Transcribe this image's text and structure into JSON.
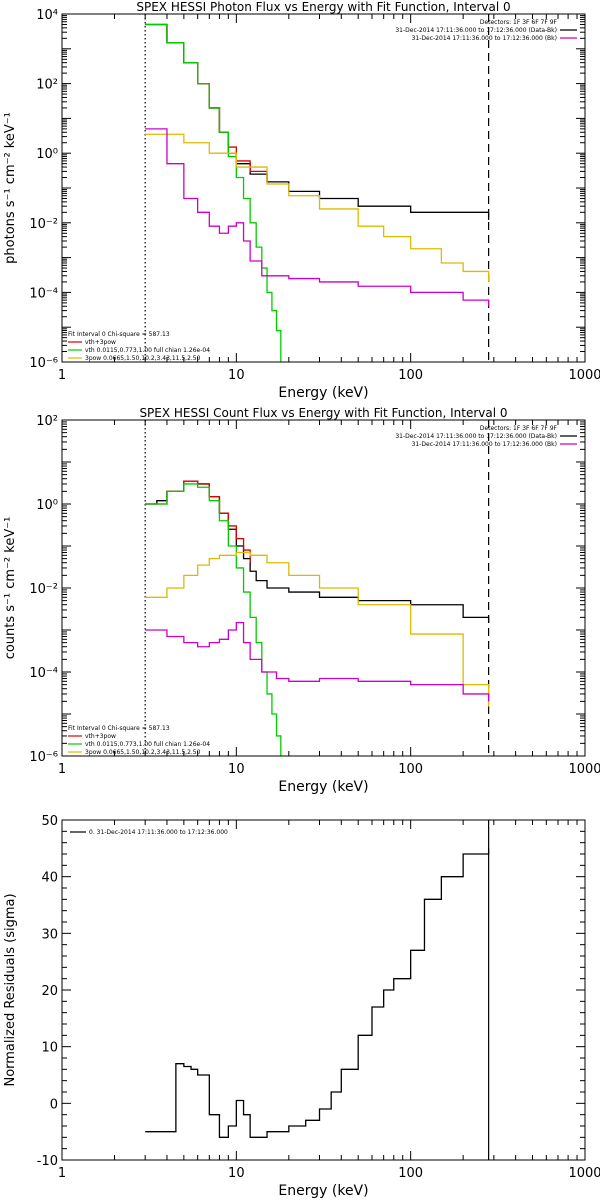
{
  "chart_data": [
    {
      "type": "line",
      "title": "SPEX HESSI Photon Flux vs Energy with Fit Function, Interval 0",
      "xlabel": "Energy (keV)",
      "ylabel": "photons s⁻¹ cm⁻² keV⁻¹",
      "xscale": "log",
      "yscale": "log",
      "xlim": [
        1,
        1000
      ],
      "ylim": [
        1e-06,
        10000
      ],
      "x_ticks": [
        1,
        10,
        100,
        1000
      ],
      "x_tick_labels": [
        "1",
        "10",
        "100",
        "1000"
      ],
      "y_ticks": [
        1e-06,
        0.0001,
        0.01,
        1,
        100,
        10000
      ],
      "y_tick_labels": [
        "10⁻⁶",
        "10⁻⁴",
        "10⁻²",
        "10⁰",
        "10²",
        "10⁴"
      ],
      "grid": false,
      "legend_top": [
        "Detectors: 1F 3F 6F 7F 9F",
        "31-Dec-2014 17:11:36.000 to 17:12:36.000 (Data-Bk)",
        "31-Dec-2014 17:11:36.000 to 17:12:36.000 (Bk)"
      ],
      "legend_top_colors": [
        "",
        "#000000",
        "#cc00cc"
      ],
      "legend_bottom": [
        "Fit Interval 0   Chi-square = 587.13",
        "vth+3pow",
        "vth 0.0115,0.773,1.00  full chian 1.26e-04",
        "3pow 0.0665,1.50,10.2,3.43,11.5,2.50"
      ],
      "legend_bottom_colors": [
        "",
        "#dd0000",
        "#00cc00",
        "#ddbb00"
      ],
      "vlines": [
        {
          "x": 3,
          "style": "dotted",
          "color": "#000000"
        },
        {
          "x": 280,
          "style": "dashed",
          "color": "#000000"
        }
      ],
      "series": [
        {
          "color": "#000000",
          "x": [
            3,
            4,
            5,
            6,
            7,
            8,
            9,
            10,
            12,
            15,
            20,
            30,
            50,
            100,
            280
          ],
          "y": [
            5000,
            1500,
            400,
            100,
            20,
            4,
            1,
            0.5,
            0.25,
            0.15,
            0.08,
            0.05,
            0.03,
            0.02,
            0.012
          ]
        },
        {
          "color": "#dd0000",
          "x": [
            3,
            4,
            5,
            6,
            7,
            8,
            9,
            10,
            12,
            15
          ],
          "y": [
            5000,
            1500,
            400,
            100,
            20,
            4,
            1.5,
            0.6,
            0.3,
            0.15
          ]
        },
        {
          "color": "#00cc00",
          "x": [
            3,
            4,
            5,
            6,
            7,
            8,
            9,
            10,
            11,
            12,
            13,
            14,
            15,
            16,
            17,
            18
          ],
          "y": [
            5000,
            1500,
            400,
            100,
            20,
            4,
            0.8,
            0.2,
            0.05,
            0.01,
            0.002,
            0.0005,
            0.0001,
            3e-05,
            8e-06,
            1e-06
          ]
        },
        {
          "color": "#ddbb00",
          "x": [
            3,
            5,
            7,
            10,
            15,
            20,
            30,
            50,
            70,
            100,
            150,
            200,
            280
          ],
          "y": [
            3.5,
            2,
            1,
            0.4,
            0.13,
            0.06,
            0.025,
            0.008,
            0.004,
            0.0018,
            0.0007,
            0.0004,
            0.0002
          ]
        },
        {
          "color": "#cc00cc",
          "x": [
            3,
            4,
            5,
            6,
            7,
            8,
            9,
            10,
            11,
            12,
            14,
            17,
            20,
            30,
            50,
            100,
            200,
            280
          ],
          "y": [
            5,
            0.5,
            0.05,
            0.02,
            0.008,
            0.005,
            0.008,
            0.01,
            0.003,
            0.0008,
            0.0003,
            0.0003,
            0.00025,
            0.0002,
            0.00015,
            0.0001,
            6e-05,
            4e-05
          ]
        }
      ]
    },
    {
      "type": "line",
      "title": "SPEX HESSI Count Flux vs Energy with Fit Function, Interval 0",
      "xlabel": "Energy (keV)",
      "ylabel": "counts s⁻¹ cm⁻² keV⁻¹",
      "xscale": "log",
      "yscale": "log",
      "xlim": [
        1,
        1000
      ],
      "ylim": [
        1e-06,
        100
      ],
      "x_ticks": [
        1,
        10,
        100,
        1000
      ],
      "x_tick_labels": [
        "1",
        "10",
        "100",
        "1000"
      ],
      "y_ticks": [
        1e-06,
        0.0001,
        0.01,
        1,
        100
      ],
      "y_tick_labels": [
        "10⁻⁶",
        "10⁻⁴",
        "10⁻²",
        "10⁰",
        "10²"
      ],
      "grid": false,
      "legend_top": [
        "Detectors: 1F 3F 6F 7F 9F",
        "31-Dec-2014 17:11:36.000 to 17:12:36.000 (Data-Bk)",
        "31-Dec-2014 17:11:36.000 to 17:12:36.000 (Bk)"
      ],
      "legend_top_colors": [
        "",
        "#000000",
        "#cc00cc"
      ],
      "legend_bottom": [
        "Fit Interval 0   Chi-square = 587.13",
        "vth+3pow",
        "vth 0.0115,0.773,1.00  full chian 1.26e-04",
        "3pow 0.0665,1.50,10.2,3.43,11.5,2.50"
      ],
      "legend_bottom_colors": [
        "",
        "#dd0000",
        "#00cc00",
        "#ddbb00"
      ],
      "vlines": [
        {
          "x": 3,
          "style": "dotted",
          "color": "#000000"
        },
        {
          "x": 280,
          "style": "dashed",
          "color": "#000000"
        }
      ],
      "series": [
        {
          "color": "#000000",
          "x": [
            3,
            3.5,
            4,
            5,
            6,
            7,
            8,
            9,
            10,
            11,
            12,
            13,
            15,
            20,
            30,
            50,
            100,
            200,
            280
          ],
          "y": [
            1,
            1.2,
            2,
            3.5,
            3,
            1.5,
            0.6,
            0.25,
            0.1,
            0.05,
            0.025,
            0.015,
            0.01,
            0.008,
            0.006,
            0.005,
            0.004,
            0.002,
            0.0015
          ]
        },
        {
          "color": "#dd0000",
          "x": [
            3,
            4,
            5,
            6,
            7,
            8,
            9,
            10,
            11,
            12
          ],
          "y": [
            1,
            2,
            3.5,
            3,
            1.5,
            0.6,
            0.3,
            0.15,
            0.08,
            0.04
          ]
        },
        {
          "color": "#00cc00",
          "x": [
            3,
            4,
            5,
            6,
            7,
            8,
            9,
            10,
            11,
            12,
            13,
            14,
            15,
            16,
            17,
            18
          ],
          "y": [
            1,
            2,
            3,
            2.5,
            1.2,
            0.4,
            0.1,
            0.03,
            0.008,
            0.002,
            0.0005,
            0.0001,
            3e-05,
            1e-05,
            3e-06,
            1e-06
          ]
        },
        {
          "color": "#ddbb00",
          "x": [
            3,
            4,
            5,
            6,
            7,
            8,
            10,
            12,
            15,
            20,
            30,
            50,
            100,
            200,
            280
          ],
          "y": [
            0.006,
            0.01,
            0.02,
            0.035,
            0.05,
            0.06,
            0.07,
            0.06,
            0.04,
            0.02,
            0.01,
            0.004,
            0.0008,
            5e-05,
            1.5e-05
          ]
        },
        {
          "color": "#cc00cc",
          "x": [
            3,
            4,
            5,
            6,
            7,
            8,
            9,
            10,
            11,
            12,
            14,
            17,
            20,
            30,
            50,
            100,
            200,
            280
          ],
          "y": [
            0.001,
            0.0007,
            0.0005,
            0.0004,
            0.0005,
            0.0006,
            0.001,
            0.0015,
            0.0005,
            0.0002,
            0.0001,
            7e-05,
            6e-05,
            7e-05,
            6e-05,
            5e-05,
            3e-05,
            2e-05
          ]
        }
      ]
    },
    {
      "type": "line",
      "title": "",
      "xlabel": "Energy (keV)",
      "ylabel": "Normalized Residuals (sigma)",
      "xscale": "log",
      "yscale": "linear",
      "xlim": [
        1,
        1000
      ],
      "ylim": [
        -10,
        50
      ],
      "x_ticks": [
        1,
        10,
        100,
        1000
      ],
      "x_tick_labels": [
        "1",
        "10",
        "100",
        "1000"
      ],
      "y_ticks": [
        -10,
        0,
        10,
        20,
        30,
        40,
        50
      ],
      "y_tick_labels": [
        "-10",
        "0",
        "10",
        "20",
        "30",
        "40",
        "50"
      ],
      "grid": false,
      "legend_top": [
        "0. 31-Dec-2014 17:11:36.000 to 17:12:36.000"
      ],
      "legend_top_colors": [
        "#000000"
      ],
      "legend_bottom": [],
      "legend_bottom_colors": [],
      "vlines": [
        {
          "x": 280,
          "style": "solid",
          "color": "#000000"
        }
      ],
      "series": [
        {
          "color": "#000000",
          "x": [
            3,
            4,
            4.5,
            5,
            5.5,
            6,
            7,
            8,
            9,
            10,
            11,
            12,
            15,
            20,
            25,
            30,
            35,
            40,
            50,
            60,
            70,
            80,
            100,
            120,
            150,
            200,
            280
          ],
          "y": [
            -5,
            -5,
            7,
            6.5,
            6,
            5,
            -2,
            -6,
            -4,
            0.5,
            -2,
            -6,
            -5,
            -4,
            -3,
            -1,
            2,
            6,
            12,
            17,
            20,
            22,
            27,
            36,
            40,
            44,
            45
          ]
        }
      ]
    }
  ]
}
